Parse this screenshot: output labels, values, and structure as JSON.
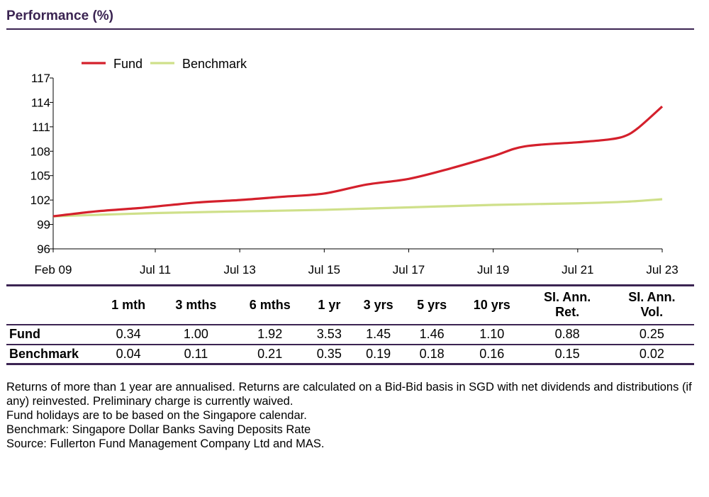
{
  "header": {
    "title": "Performance (%)"
  },
  "chart_data": {
    "type": "line",
    "title": "",
    "xlabel": "",
    "ylabel": "",
    "ylim": [
      96,
      117
    ],
    "yticks": [
      96,
      99,
      102,
      105,
      108,
      111,
      114,
      117
    ],
    "xticks": [
      {
        "date": "2009-02",
        "label": "Feb 09"
      },
      {
        "date": "2011-07",
        "label": "Jul 11"
      },
      {
        "date": "2013-07",
        "label": "Jul 13"
      },
      {
        "date": "2015-07",
        "label": "Jul 15"
      },
      {
        "date": "2017-07",
        "label": "Jul 17"
      },
      {
        "date": "2019-07",
        "label": "Jul 19"
      },
      {
        "date": "2021-07",
        "label": "Jul 21"
      },
      {
        "date": "2023-07",
        "label": "Jul 23"
      }
    ],
    "grid": false,
    "legend_position": "top-left",
    "series": [
      {
        "name": "Fund",
        "color": "#d4202c",
        "points": [
          [
            "2009-02",
            100.0
          ],
          [
            "2010-02",
            100.6
          ],
          [
            "2011-02",
            101.0
          ],
          [
            "2011-07",
            101.2
          ],
          [
            "2012-07",
            101.7
          ],
          [
            "2013-07",
            102.0
          ],
          [
            "2014-07",
            102.4
          ],
          [
            "2015-07",
            102.8
          ],
          [
            "2016-07",
            103.9
          ],
          [
            "2017-07",
            104.6
          ],
          [
            "2018-07",
            105.9
          ],
          [
            "2019-07",
            107.4
          ],
          [
            "2020-04",
            108.6
          ],
          [
            "2021-07",
            109.1
          ],
          [
            "2022-03",
            109.4
          ],
          [
            "2022-08",
            109.8
          ],
          [
            "2022-12",
            110.8
          ],
          [
            "2023-07",
            113.5
          ]
        ]
      },
      {
        "name": "Benchmark",
        "color": "#cfe08a",
        "points": [
          [
            "2009-02",
            100.0
          ],
          [
            "2011-07",
            100.4
          ],
          [
            "2013-07",
            100.6
          ],
          [
            "2015-07",
            100.8
          ],
          [
            "2017-07",
            101.1
          ],
          [
            "2019-07",
            101.4
          ],
          [
            "2021-07",
            101.6
          ],
          [
            "2022-09",
            101.8
          ],
          [
            "2023-07",
            102.1
          ]
        ]
      }
    ]
  },
  "table": {
    "columns": [
      "1 mth",
      "3 mths",
      "6 mths",
      "1 yr",
      "3 yrs",
      "5 yrs",
      "10 yrs",
      "SI. Ann. Ret.",
      "SI. Ann. Vol."
    ],
    "column_lines": [
      [
        "1 mth"
      ],
      [
        "3 mths"
      ],
      [
        "6 mths"
      ],
      [
        "1 yr"
      ],
      [
        "3 yrs"
      ],
      [
        "5 yrs"
      ],
      [
        "10 yrs"
      ],
      [
        "SI. Ann.",
        "Ret."
      ],
      [
        "SI. Ann.",
        "Vol."
      ]
    ],
    "rows": [
      {
        "label": "Fund",
        "values": [
          "0.34",
          "1.00",
          "1.92",
          "3.53",
          "1.45",
          "1.46",
          "1.10",
          "0.88",
          "0.25"
        ]
      },
      {
        "label": "Benchmark",
        "values": [
          "0.04",
          "0.11",
          "0.21",
          "0.35",
          "0.19",
          "0.18",
          "0.16",
          "0.15",
          "0.02"
        ]
      }
    ]
  },
  "notes": [
    "Returns of more than 1 year are annualised. Returns are calculated on a Bid-Bid basis in SGD with net dividends and distributions (if any) reinvested. Preliminary charge is currently waived.",
    "Fund holidays are to be based on the Singapore calendar.",
    "Benchmark: Singapore Dollar Banks Saving Deposits Rate",
    "Source: Fullerton Fund Management Company Ltd and MAS."
  ]
}
